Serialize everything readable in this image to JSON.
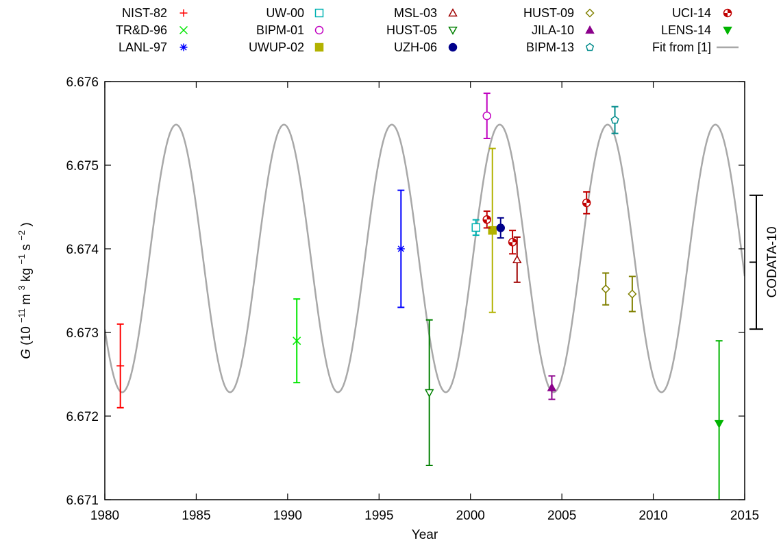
{
  "chart_data": {
    "type": "scatter",
    "xlabel": "Year",
    "ylabel": {
      "var": "G",
      "prefix": "(10",
      "exp1": "−11",
      "unit1": " m",
      "exp2": "3",
      "unit2": "kg",
      "exp3": "−1",
      "unit3": "s",
      "exp4": "−2",
      "suffix": ")"
    },
    "xlim": [
      1980,
      2015
    ],
    "ylim": [
      6.671,
      6.676
    ],
    "xticks": [
      1980,
      1985,
      1990,
      1995,
      2000,
      2005,
      2010,
      2015
    ],
    "xtick_labels": [
      "1980",
      "1985",
      "1990",
      "1995",
      "2000",
      "2005",
      "2010",
      "2015"
    ],
    "yticks": [
      6.671,
      6.672,
      6.673,
      6.674,
      6.675,
      6.676
    ],
    "ytick_labels": [
      "6.671",
      "6.672",
      "6.673",
      "6.674",
      "6.675",
      "6.676"
    ],
    "legend_position": "top",
    "series": [
      {
        "name": "NIST-82",
        "color": "#ff0000",
        "marker": "plus",
        "points": [
          {
            "x": 1980.85,
            "y": 6.6726,
            "err": 0.0005
          }
        ]
      },
      {
        "name": "TR&D-96",
        "color": "#00e600",
        "marker": "cross",
        "points": [
          {
            "x": 1990.5,
            "y": 6.6729,
            "err": 0.0005
          }
        ]
      },
      {
        "name": "LANL-97",
        "color": "#0000ff",
        "marker": "star",
        "points": [
          {
            "x": 1996.2,
            "y": 6.674,
            "err": 0.0007
          }
        ]
      },
      {
        "name": "UW-00",
        "color": "#00b2b2",
        "marker": "square-open",
        "points": [
          {
            "x": 2000.3,
            "y": 6.674255,
            "err": 9.2e-05
          }
        ]
      },
      {
        "name": "BIPM-01",
        "color": "#c000c0",
        "marker": "circle-open",
        "points": [
          {
            "x": 2000.9,
            "y": 6.67559,
            "err": 0.00027
          }
        ]
      },
      {
        "name": "UWUP-02",
        "color": "#b2b200",
        "marker": "square-filled",
        "points": [
          {
            "x": 2001.2,
            "y": 6.67422,
            "err": 0.00098
          }
        ]
      },
      {
        "name": "MSL-03",
        "color": "#a00000",
        "marker": "triangle-up-open",
        "points": [
          {
            "x": 2002.55,
            "y": 6.67387,
            "err": 0.00027
          }
        ]
      },
      {
        "name": "HUST-05",
        "color": "#008000",
        "marker": "triangle-down-open",
        "points": [
          {
            "x": 1997.75,
            "y": 6.67228,
            "err": 0.00087
          }
        ]
      },
      {
        "name": "UZH-06",
        "color": "#00008b",
        "marker": "circle-filled",
        "points": [
          {
            "x": 2001.65,
            "y": 6.67425,
            "err": 0.00012
          }
        ]
      },
      {
        "name": "HUST-09",
        "color": "#808000",
        "marker": "diamond-open",
        "points": [
          {
            "x": 2007.4,
            "y": 6.67352,
            "err": 0.00019
          },
          {
            "x": 2008.85,
            "y": 6.67346,
            "err": 0.00021
          }
        ]
      },
      {
        "name": "JILA-10",
        "color": "#8b008b",
        "marker": "triangle-up-filled",
        "points": [
          {
            "x": 2004.45,
            "y": 6.67234,
            "err": 0.00014
          }
        ]
      },
      {
        "name": "BIPM-13",
        "color": "#008b8b",
        "marker": "pentagon-open",
        "points": [
          {
            "x": 2007.9,
            "y": 6.67554,
            "err": 0.00016
          }
        ]
      },
      {
        "name": "UCI-14",
        "color": "#c00000",
        "marker": "circle-x",
        "points": [
          {
            "x": 2000.9,
            "y": 6.67435,
            "err": 0.0001
          },
          {
            "x": 2002.3,
            "y": 6.67408,
            "err": 0.00014
          },
          {
            "x": 2006.35,
            "y": 6.67455,
            "err": 0.00013
          }
        ]
      },
      {
        "name": "LENS-14",
        "color": "#00b400",
        "marker": "triangle-down-filled",
        "points": [
          {
            "x": 2013.6,
            "y": 6.67191,
            "err": 0.00099
          }
        ]
      }
    ],
    "fit": {
      "name": "Fit from [1]",
      "color": "#a8a8a8",
      "mean": 6.673885,
      "amplitude": 0.0016,
      "period_years": 5.9,
      "peak_year": 1983.9
    },
    "codata": {
      "label": "CODATA-10",
      "value": 6.67384,
      "uncertainty": 0.0008
    }
  }
}
